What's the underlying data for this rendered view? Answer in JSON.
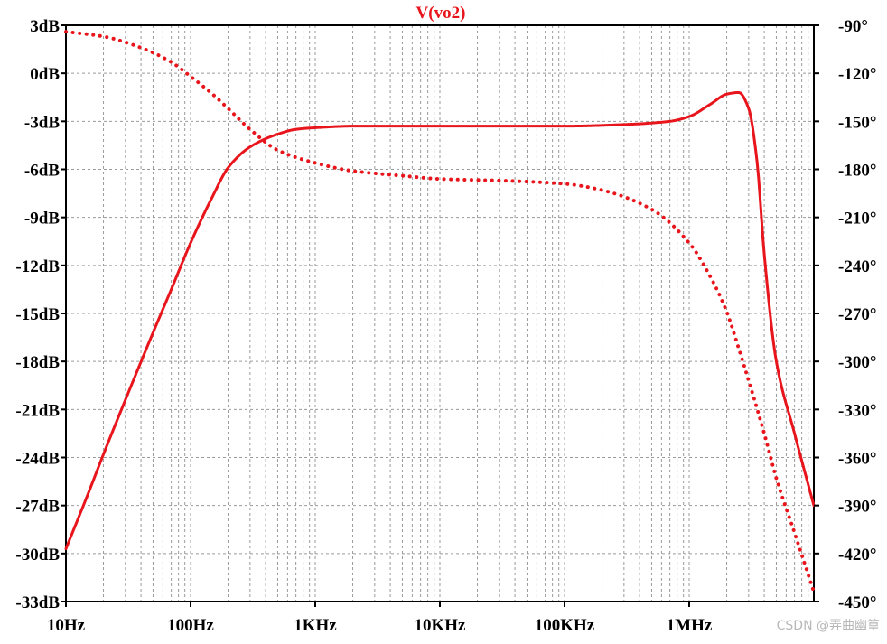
{
  "chart_data": {
    "type": "line",
    "title": "V(vo2)",
    "x_scale": "log",
    "xlim_hz": [
      10,
      10000000
    ],
    "x_tick_values_hz": [
      10,
      100,
      1000,
      10000,
      100000,
      1000000
    ],
    "x_tick_labels": [
      "10Hz",
      "100Hz",
      "1KHz",
      "10KHz",
      "100KHz",
      "1MHz"
    ],
    "y_left_ticks": [
      3,
      0,
      -3,
      -6,
      -9,
      -12,
      -15,
      -18,
      -21,
      -24,
      -27,
      -30,
      -33
    ],
    "y_left_tick_labels": [
      "3dB",
      "0dB",
      "-3dB",
      "-6dB",
      "-9dB",
      "-12dB",
      "-15dB",
      "-18dB",
      "-21dB",
      "-24dB",
      "-27dB",
      "-30dB",
      "-33dB"
    ],
    "y_left_range": [
      -33,
      3
    ],
    "y_right_ticks": [
      -90,
      -120,
      -150,
      -180,
      -210,
      -240,
      -270,
      -300,
      -330,
      -360,
      -390,
      -420,
      -450
    ],
    "y_right_tick_labels": [
      "-90°",
      "-120°",
      "-150°",
      "-180°",
      "-210°",
      "-240°",
      "-270°",
      "-300°",
      "-330°",
      "-360°",
      "-390°",
      "-420°",
      "-450°"
    ],
    "y_right_range": [
      -450,
      -90
    ],
    "grid": true,
    "series": [
      {
        "style": "solid",
        "axis": "left",
        "unit": "dB",
        "color": "#e8151c",
        "x": [
          10,
          15,
          20,
          30,
          50,
          70,
          100,
          150,
          200,
          300,
          500,
          700,
          1000,
          2000,
          5000,
          10000,
          100000,
          300000,
          700000,
          1000000,
          1500000,
          2000000,
          2500000,
          3000000,
          3500000,
          4000000,
          5000000,
          7000000,
          10000000
        ],
        "values": [
          -29.7,
          -26.3,
          -23.8,
          -20.4,
          -16.2,
          -13.5,
          -10.6,
          -7.7,
          -5.9,
          -4.6,
          -3.8,
          -3.5,
          -3.4,
          -3.3,
          -3.3,
          -3.3,
          -3.3,
          -3.2,
          -3.0,
          -2.7,
          -1.9,
          -1.3,
          -1.2,
          -2.2,
          -5.5,
          -11.3,
          -18.0,
          -22.5,
          -27.0
        ]
      },
      {
        "style": "dotted",
        "axis": "right",
        "unit": "deg",
        "color": "#e8151c",
        "x": [
          10,
          20,
          40,
          70,
          100,
          150,
          200,
          300,
          500,
          1000,
          2000,
          5000,
          10000,
          30000,
          100000,
          200000,
          500000,
          1000000,
          1500000,
          2000000,
          2500000,
          3000000,
          4000000,
          5000000,
          7000000,
          10000000
        ],
        "values": [
          -94,
          -97,
          -104,
          -113,
          -122,
          -133,
          -142,
          -155,
          -168,
          -176,
          -181,
          -184,
          -186,
          -187,
          -189,
          -193,
          -205,
          -226,
          -248,
          -269,
          -292,
          -312,
          -345,
          -373,
          -407,
          -444
        ]
      }
    ]
  },
  "watermark": "CSDN @弄曲幽篁"
}
